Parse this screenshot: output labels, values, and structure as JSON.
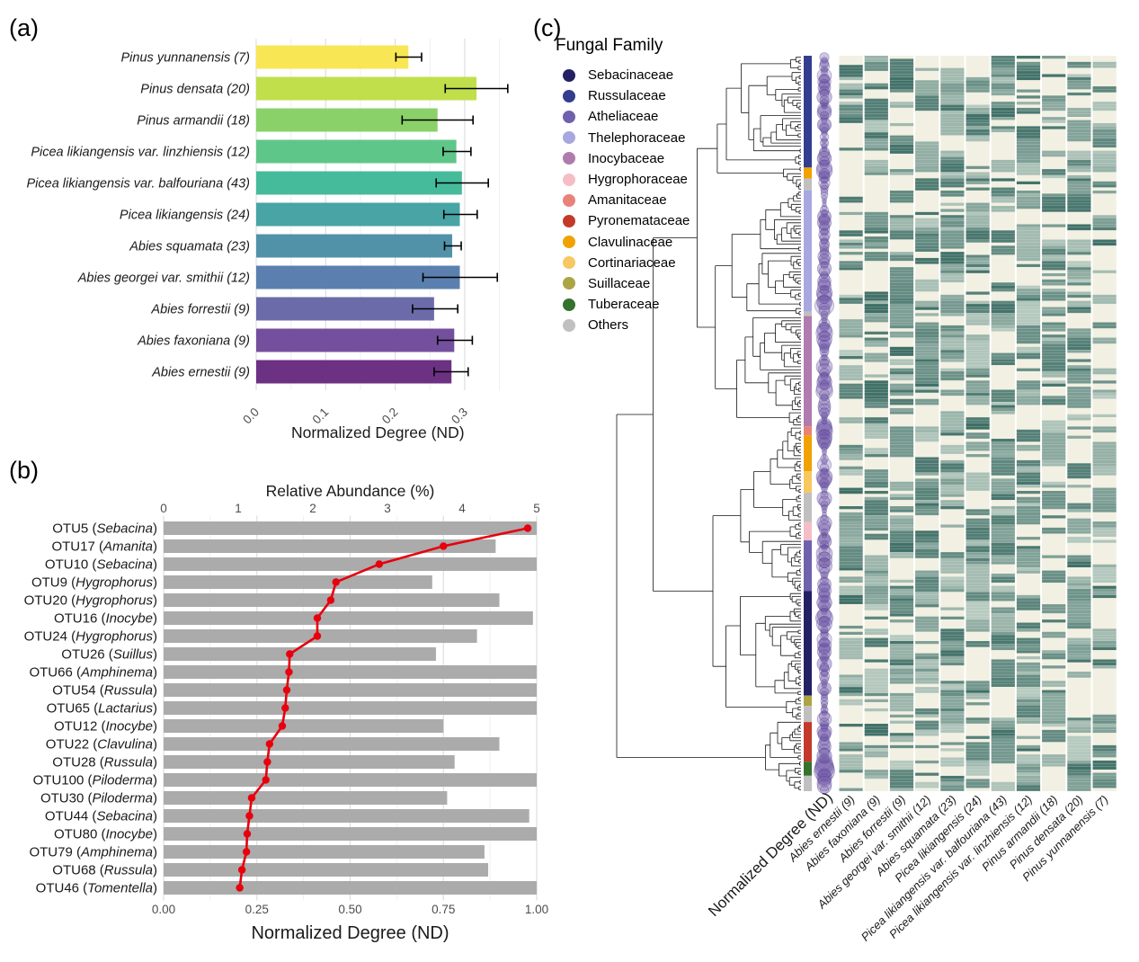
{
  "figure": {
    "panel_labels": {
      "a": "(a)",
      "b": "(b)",
      "c": "(c)"
    }
  },
  "chart_data": [
    {
      "id": "a",
      "type": "bar",
      "orientation": "horizontal",
      "xlabel": "Normalized Degree (ND)",
      "xlim": [
        0,
        0.355
      ],
      "xticks": [
        0,
        0.1,
        0.2,
        0.3
      ],
      "xtick_labels": [
        "0.0",
        "0.1",
        "0.2",
        "0.3"
      ],
      "minor_grid_step": 0.05,
      "grid": true,
      "categories": [
        "Pinus yunnanensis (7)",
        "Pinus densata (20)",
        "Pinus armandii (18)",
        "Picea likiangensis var. linzhiensis (12)",
        "Picea likiangensis var. balfouriana (43)",
        "Picea likiangensis (24)",
        "Abies squamata (23)",
        "Abies georgei var. smithii (12)",
        "Abies forrestii (9)",
        "Abies faxoniana (9)",
        "Abies ernestii (9)"
      ],
      "values": [
        0.219,
        0.317,
        0.261,
        0.288,
        0.296,
        0.293,
        0.282,
        0.293,
        0.256,
        0.285,
        0.281
      ],
      "error_low": [
        0.201,
        0.272,
        0.21,
        0.269,
        0.259,
        0.27,
        0.271,
        0.24,
        0.225,
        0.261,
        0.256
      ],
      "error_high": [
        0.238,
        0.362,
        0.312,
        0.309,
        0.334,
        0.318,
        0.295,
        0.347,
        0.29,
        0.311,
        0.305
      ],
      "bar_colors": [
        "#F8E655",
        "#C0DF4B",
        "#8BD16A",
        "#5FC689",
        "#45BB9B",
        "#48A4A5",
        "#5292A9",
        "#5B80AF",
        "#6B6BAA",
        "#744F9E",
        "#6D3184"
      ]
    },
    {
      "id": "b",
      "type": "bar",
      "note": "horizontal bars (Normalized Degree, bottom axis) overlaid with red line+points (Relative Abundance, top axis)",
      "xlabel_bottom": "Normalized Degree (ND)",
      "xlabel_top": "Relative Abundance (%)",
      "x_bottom_ticks": [
        "0.00",
        "0.25",
        "0.50",
        "0.75",
        "1.00"
      ],
      "x_top_ticks": [
        "0",
        "1",
        "2",
        "3",
        "4",
        "5"
      ],
      "nd_range": [
        0,
        1
      ],
      "ra_range": [
        0,
        5
      ],
      "bar_color": "#ABABAB",
      "line_color": "#E8000D",
      "rows": [
        {
          "otu": "OTU5",
          "genus": "Sebacina",
          "nd": 1.0,
          "ra": 4.88
        },
        {
          "otu": "OTU17",
          "genus": "Amanita",
          "nd": 0.89,
          "ra": 3.75
        },
        {
          "otu": "OTU10",
          "genus": "Sebacina",
          "nd": 1.0,
          "ra": 2.89
        },
        {
          "otu": "OTU9",
          "genus": "Hygrophorus",
          "nd": 0.72,
          "ra": 2.31
        },
        {
          "otu": "OTU20",
          "genus": "Hygrophorus",
          "nd": 0.9,
          "ra": 2.24
        },
        {
          "otu": "OTU16",
          "genus": "Inocybe",
          "nd": 0.99,
          "ra": 2.06
        },
        {
          "otu": "OTU24",
          "genus": "Hygrophorus",
          "nd": 0.84,
          "ra": 2.06
        },
        {
          "otu": "OTU26",
          "genus": "Suillus",
          "nd": 0.73,
          "ra": 1.69
        },
        {
          "otu": "OTU66",
          "genus": "Amphinema",
          "nd": 1.0,
          "ra": 1.68
        },
        {
          "otu": "OTU54",
          "genus": "Russula",
          "nd": 1.0,
          "ra": 1.65
        },
        {
          "otu": "OTU65",
          "genus": "Lactarius",
          "nd": 1.0,
          "ra": 1.63
        },
        {
          "otu": "OTU12",
          "genus": "Inocybe",
          "nd": 0.75,
          "ra": 1.59
        },
        {
          "otu": "OTU22",
          "genus": "Clavulina",
          "nd": 0.9,
          "ra": 1.42
        },
        {
          "otu": "OTU28",
          "genus": "Russula",
          "nd": 0.78,
          "ra": 1.39
        },
        {
          "otu": "OTU100",
          "genus": "Piloderma",
          "nd": 1.0,
          "ra": 1.37
        },
        {
          "otu": "OTU30",
          "genus": "Piloderma",
          "nd": 0.76,
          "ra": 1.18
        },
        {
          "otu": "OTU44",
          "genus": "Sebacina",
          "nd": 0.98,
          "ra": 1.15
        },
        {
          "otu": "OTU80",
          "genus": "Inocybe",
          "nd": 1.0,
          "ra": 1.12
        },
        {
          "otu": "OTU79",
          "genus": "Amphinema",
          "nd": 0.86,
          "ra": 1.11
        },
        {
          "otu": "OTU68",
          "genus": "Russula",
          "nd": 0.87,
          "ra": 1.05
        },
        {
          "otu": "OTU46",
          "genus": "Tomentella",
          "nd": 1.0,
          "ra": 1.02
        }
      ]
    },
    {
      "id": "c",
      "type": "heatmap",
      "note": "OTU dendrogram with fungal-family strip, ND bubble column and presence/abundance heatmap across 11 host species",
      "legend_title": "Fungal Family",
      "legend": [
        {
          "label": "Sebacinaceae",
          "color": "#232164"
        },
        {
          "label": "Russulaceae",
          "color": "#333D8F"
        },
        {
          "label": "Atheliaceae",
          "color": "#6F61AC"
        },
        {
          "label": "Thelephoraceae",
          "color": "#A9A7E0"
        },
        {
          "label": "Inocybaceae",
          "color": "#B07BAE"
        },
        {
          "label": "Hygrophoraceae",
          "color": "#F5BEC6"
        },
        {
          "label": "Amanitaceae",
          "color": "#E98379"
        },
        {
          "label": "Pyronemataceae",
          "color": "#C33A2B"
        },
        {
          "label": "Clavulinaceae",
          "color": "#F0A202"
        },
        {
          "label": "Cortinariaceae",
          "color": "#F7C85F"
        },
        {
          "label": "Suillaceae",
          "color": "#ADA443"
        },
        {
          "label": "Tuberaceae",
          "color": "#35722F"
        },
        {
          "label": "Others",
          "color": "#C0C0C0"
        }
      ],
      "circle_column_label": "Normalized Degree (ND)",
      "columns": [
        "Abies ernestii (9)",
        "Abies faxoniana (9)",
        "Abies forrestii (9)",
        "Abies georgei var. smithii (12)",
        "Abies squamata (23)",
        "Picea likiangensis (24)",
        "Picea likiangensis var. balfouriana (43)",
        "Picea likiangensis var. linzhiensis (12)",
        "Pinus armandii (18)",
        "Pinus densata (20)",
        "Pinus yunnanensis (7)"
      ],
      "family_strip": [
        {
          "family": "Russulaceae",
          "from": 0.0,
          "to": 0.152
        },
        {
          "family": "Clavulinaceae",
          "from": 0.152,
          "to": 0.167
        },
        {
          "family": "Others",
          "from": 0.167,
          "to": 0.183
        },
        {
          "family": "Thelephoraceae",
          "from": 0.183,
          "to": 0.348
        },
        {
          "family": "Others",
          "from": 0.348,
          "to": 0.354
        },
        {
          "family": "Inocybaceae",
          "from": 0.354,
          "to": 0.504
        },
        {
          "family": "Amanitaceae",
          "from": 0.504,
          "to": 0.516
        },
        {
          "family": "Clavulinaceae",
          "from": 0.516,
          "to": 0.565
        },
        {
          "family": "Cortinariaceae",
          "from": 0.565,
          "to": 0.594
        },
        {
          "family": "Others",
          "from": 0.594,
          "to": 0.634
        },
        {
          "family": "Hygrophoraceae",
          "from": 0.634,
          "to": 0.659
        },
        {
          "family": "Atheliaceae",
          "from": 0.659,
          "to": 0.728
        },
        {
          "family": "Sebacinaceae",
          "from": 0.728,
          "to": 0.87
        },
        {
          "family": "Suillaceae",
          "from": 0.87,
          "to": 0.884
        },
        {
          "family": "Others",
          "from": 0.884,
          "to": 0.906
        },
        {
          "family": "Pyronemataceae",
          "from": 0.906,
          "to": 0.96
        },
        {
          "family": "Tuberaceae",
          "from": 0.96,
          "to": 0.979
        },
        {
          "family": "Others",
          "from": 0.979,
          "to": 1.0
        }
      ],
      "heatmap_palette": {
        "absent": "#F2F0E2",
        "low": "#C9D8CE",
        "high": "#3E6F67"
      },
      "circle_color": "#6B52A5",
      "render_hints": {
        "n_leaves": 240,
        "seed": 20240613,
        "column_density": [
          0.62,
          0.6,
          0.58,
          0.6,
          0.64,
          0.65,
          0.67,
          0.62,
          0.56,
          0.58,
          0.48
        ]
      }
    }
  ]
}
